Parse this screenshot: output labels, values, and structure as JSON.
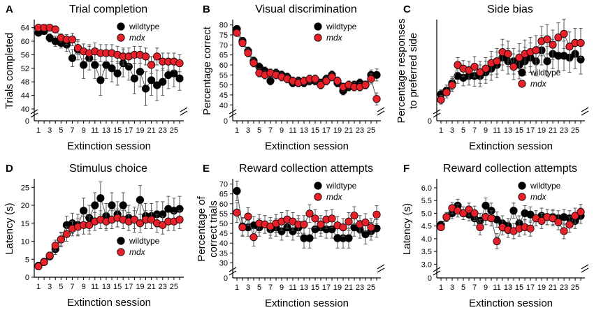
{
  "colors": {
    "wildtype": "#000000",
    "mdx": "#e8202a",
    "error": "#555555"
  },
  "chart_data": [
    {
      "panel": "A",
      "type": "scatter",
      "title": "Trial completion",
      "xlabel": "Extinction session",
      "ylabel": "Trials completed",
      "xlim": [
        0,
        26
      ],
      "xticks": [
        "1",
        "3",
        "5",
        "7",
        "9",
        "11",
        "13",
        "15",
        "17",
        "19",
        "21",
        "23",
        "25"
      ],
      "yticks": [
        40,
        44,
        48,
        52,
        56,
        60,
        64
      ],
      "ylim": [
        40,
        66
      ],
      "ybreak_label": "0",
      "legend": {
        "position": "top-right",
        "entries": [
          "wildtype",
          "mdx"
        ]
      },
      "series": [
        {
          "name": "wildtype",
          "values": [
            62.5,
            63,
            61,
            60,
            59.5,
            59,
            55,
            57.5,
            53,
            55,
            53,
            48.5,
            53,
            52,
            50.5,
            53.5,
            52.5,
            49,
            51,
            46,
            48.5,
            47,
            48,
            50,
            50.5,
            49
          ],
          "errors": [
            0.8,
            0.8,
            1.2,
            1.5,
            1.5,
            2,
            2.5,
            3,
            4,
            3.5,
            4,
            4.5,
            4,
            4,
            3.5,
            4,
            4,
            4.5,
            4.5,
            5,
            4.5,
            4.5,
            4,
            4,
            4,
            3.5
          ]
        },
        {
          "name": "mdx",
          "values": [
            64,
            64,
            64,
            63.5,
            61,
            60.5,
            60.5,
            58,
            57,
            56.5,
            57,
            56.5,
            56.5,
            56.5,
            56,
            55.5,
            55.5,
            56,
            56,
            55.5,
            53,
            55.5,
            54,
            54,
            54,
            53.5
          ],
          "errors": [
            0.6,
            0.6,
            0.8,
            1,
            1.2,
            1.5,
            1.8,
            2,
            2.2,
            2.5,
            2.5,
            2.5,
            2.5,
            2.5,
            2.5,
            2.5,
            2.5,
            2.5,
            2.5,
            2.5,
            2.5,
            2.5,
            2.5,
            2.5,
            2.5,
            2.5
          ]
        }
      ]
    },
    {
      "panel": "B",
      "type": "scatter",
      "title": "Visual discrimination",
      "xlabel": "Extinction session",
      "ylabel": "Percentage correct",
      "xlim": [
        0,
        26
      ],
      "xticks": [
        "1",
        "3",
        "5",
        "7",
        "9",
        "11",
        "13",
        "15",
        "17",
        "19",
        "21",
        "23",
        "25"
      ],
      "yticks": [
        40,
        45,
        50,
        55,
        60,
        65,
        70,
        75,
        80
      ],
      "ylim": [
        38,
        82
      ],
      "ybreak_label": "0",
      "legend": {
        "position": "top-right",
        "entries": [
          "wildtype",
          "mdx"
        ]
      },
      "series": [
        {
          "name": "wildtype",
          "values": [
            78,
            72,
            67,
            62,
            59,
            57,
            52,
            56,
            55,
            54,
            51,
            52,
            51,
            52,
            52,
            51,
            53,
            55,
            51,
            47,
            49,
            50,
            51,
            50,
            55,
            55
          ],
          "errors": [
            1.5,
            1.8,
            2,
            2,
            2,
            2,
            2,
            2,
            2,
            2,
            2,
            2,
            2,
            2,
            2,
            2,
            2,
            2,
            2,
            2,
            2,
            2,
            2,
            2,
            2.5,
            3
          ]
        },
        {
          "name": "mdx",
          "values": [
            76,
            71,
            66,
            61,
            56,
            55,
            56,
            55,
            54,
            53,
            52,
            51,
            52,
            53,
            53,
            50,
            52,
            54,
            52,
            49,
            50,
            49,
            49,
            50,
            53,
            43
          ],
          "errors": [
            1.5,
            1.8,
            2,
            2,
            2,
            2,
            2,
            2,
            2,
            2,
            2,
            2,
            2,
            2,
            2,
            2,
            2,
            2,
            2,
            2,
            2,
            2,
            2,
            2,
            2.5,
            3
          ]
        }
      ]
    },
    {
      "panel": "C",
      "type": "scatter",
      "title": "Side bias",
      "xlabel": "Extinction session",
      "ylabel": "Percentage responses to preferred side",
      "xlim": [
        0,
        26
      ],
      "xticks": [
        "1",
        "3",
        "5",
        "7",
        "9",
        "11",
        "13",
        "15",
        "17",
        "19",
        "21",
        "23",
        "25"
      ],
      "yticks": [],
      "ylim": [
        56,
        80
      ],
      "ybreak_label": "0",
      "legend": {
        "position": "bottom-right",
        "entries": [
          "wildtype",
          "mdx"
        ]
      },
      "series": [
        {
          "name": "wildtype",
          "values": [
            60,
            61,
            63,
            65,
            64.5,
            65,
            65,
            65,
            66,
            67,
            68,
            70,
            69,
            69,
            68,
            69,
            70,
            69,
            72,
            69,
            71,
            70.5,
            70.5,
            70,
            71,
            69.5
          ],
          "errors": [
            1.2,
            1.5,
            1.8,
            2,
            2.2,
            2.5,
            2.8,
            3,
            3,
            3.2,
            3.5,
            3.5,
            3.5,
            3.5,
            3.8,
            3.8,
            4,
            4,
            4,
            4,
            4,
            4,
            4,
            4,
            4,
            4
          ]
        },
        {
          "name": "mdx",
          "values": [
            58.5,
            60.5,
            62.5,
            68,
            67,
            66.5,
            67.5,
            66,
            67,
            68.5,
            69,
            71.5,
            71,
            67.5,
            70,
            71,
            71.5,
            72,
            74.5,
            75,
            73.5,
            75.5,
            76.5,
            73,
            74,
            74
          ],
          "errors": [
            1.2,
            1.5,
            1.8,
            2,
            2.2,
            2.5,
            2.8,
            3,
            3,
            3.2,
            3.5,
            3.5,
            3.5,
            3.5,
            3.8,
            3.8,
            4,
            4,
            4,
            4,
            4,
            4,
            4,
            4,
            4,
            4
          ]
        }
      ]
    },
    {
      "panel": "D",
      "type": "scatter",
      "title": "Stimulus choice",
      "xlabel": "Extinction session",
      "ylabel": "Latency (s)",
      "xlim": [
        0,
        26
      ],
      "xticks": [
        "1",
        "3",
        "5",
        "7",
        "9",
        "11",
        "13",
        "15",
        "17",
        "19",
        "21",
        "23",
        "25"
      ],
      "yticks": [
        0,
        5,
        10,
        15,
        20,
        25
      ],
      "ylim": [
        0,
        27
      ],
      "ybreak_label": "",
      "legend": {
        "position": "bottom-right",
        "entries": [
          "wildtype",
          "mdx"
        ]
      },
      "series": [
        {
          "name": "wildtype",
          "values": [
            3.2,
            4.3,
            5.8,
            7.8,
            10.5,
            14.5,
            15,
            14.5,
            18.5,
            16.5,
            20,
            22,
            17,
            20,
            17.5,
            20,
            16.5,
            16,
            21.5,
            17,
            17,
            17.5,
            17.5,
            19,
            18.5,
            19
          ],
          "errors": [
            0.5,
            0.8,
            1,
            1.5,
            2,
            2.5,
            2.8,
            3,
            3.5,
            3.5,
            3.5,
            4.5,
            3.5,
            3.5,
            3.5,
            3.5,
            3.5,
            3.5,
            4,
            3.5,
            3.5,
            3.5,
            3.5,
            3.5,
            3.5,
            3.5
          ]
        },
        {
          "name": "mdx",
          "values": [
            3,
            4.2,
            6,
            8.8,
            10.5,
            12,
            13.5,
            14,
            14.5,
            14.5,
            15.5,
            16,
            15.5,
            16,
            16.5,
            16,
            15.5,
            16,
            15,
            16,
            16,
            15,
            14.5,
            15.5,
            15.5,
            16
          ],
          "errors": [
            0.5,
            0.8,
            1,
            1.5,
            1.8,
            2,
            2,
            2.2,
            2.5,
            2.5,
            2.5,
            2.5,
            2.5,
            2.5,
            2.5,
            2.5,
            2.5,
            2.5,
            2.5,
            2.5,
            2.5,
            2.5,
            2.5,
            2.5,
            2.5,
            2.5
          ]
        }
      ]
    },
    {
      "panel": "E",
      "type": "scatter",
      "title": "Reward collection attempts",
      "xlabel": "Extinction session",
      "ylabel": "Percentage of correct trials",
      "xlim": [
        0,
        26
      ],
      "xticks": [
        "1",
        "3",
        "5",
        "7",
        "9",
        "11",
        "13",
        "15",
        "17",
        "19",
        "21",
        "23",
        "25"
      ],
      "yticks": [
        30,
        35,
        40,
        45,
        50,
        55,
        60,
        65,
        70
      ],
      "ylim": [
        28,
        72
      ],
      "ybreak_label": "0",
      "legend": {
        "position": "top-right",
        "entries": [
          "wildtype",
          "mdx"
        ]
      },
      "series": [
        {
          "name": "wildtype",
          "values": [
            66.5,
            48.5,
            48,
            49,
            48,
            49.5,
            47,
            48,
            46,
            48,
            46,
            48,
            42.5,
            42.5,
            47,
            48,
            47,
            47,
            42.5,
            42.5,
            42.5,
            48,
            47,
            44.5,
            46,
            47.5
          ],
          "errors": [
            5,
            4.5,
            4.5,
            4.5,
            4.5,
            4.5,
            4.5,
            4.5,
            4.5,
            4.5,
            4.5,
            4.5,
            5,
            5,
            4.5,
            4.5,
            4.5,
            4.5,
            5,
            5,
            5,
            4.5,
            4.5,
            5,
            4.5,
            4.5
          ]
        },
        {
          "name": "mdx",
          "values": [
            55.5,
            48,
            53.5,
            43,
            50,
            49.5,
            48.5,
            50,
            51,
            52,
            51,
            49.5,
            49.5,
            55,
            52.5,
            49.5,
            52,
            52.5,
            49,
            48,
            51,
            54,
            49.5,
            50.5,
            48,
            54.5
          ],
          "errors": [
            5,
            4.5,
            4.5,
            4.5,
            4.5,
            4.5,
            4.5,
            4.5,
            4.5,
            4.5,
            4.5,
            4.5,
            4.5,
            4.5,
            4.5,
            4.5,
            4.5,
            4.5,
            4.5,
            4.5,
            4.5,
            4.5,
            4.5,
            4.5,
            4.5,
            4.5
          ]
        }
      ]
    },
    {
      "panel": "F",
      "type": "scatter",
      "title": "Reward collection attempts",
      "xlabel": "Extinction session",
      "ylabel": "Latency (s)",
      "xlim": [
        0,
        26
      ],
      "xticks": [
        "1",
        "3",
        "5",
        "7",
        "9",
        "11",
        "13",
        "15",
        "17",
        "19",
        "21",
        "23",
        "25"
      ],
      "yticks": [
        3.0,
        3.5,
        4.0,
        4.5,
        5.0,
        5.5,
        6.0
      ],
      "ylim": [
        2.9,
        6.3
      ],
      "ybreak_label": "0",
      "legend": {
        "position": "top-right",
        "entries": [
          "wildtype",
          "mdx"
        ]
      },
      "series": [
        {
          "name": "wildtype",
          "values": [
            4.55,
            4.85,
            5,
            5.3,
            5,
            4.95,
            4.8,
            4.7,
            5.3,
            5.1,
            4.75,
            4.6,
            4.5,
            5.1,
            4.6,
            5,
            4.95,
            4.8,
            4.9,
            4.85,
            4.85,
            4.8,
            4.85,
            4.8,
            4.7,
            4.9
          ],
          "errors": [
            0.12,
            0.18,
            0.22,
            0.25,
            0.25,
            0.25,
            0.28,
            0.3,
            0.3,
            0.3,
            0.3,
            0.3,
            0.3,
            0.3,
            0.3,
            0.3,
            0.3,
            0.3,
            0.3,
            0.3,
            0.3,
            0.3,
            0.3,
            0.3,
            0.3,
            0.3
          ]
        },
        {
          "name": "mdx",
          "values": [
            4.45,
            4.85,
            5.2,
            5.1,
            5,
            5.15,
            5,
            4.45,
            4.85,
            4.8,
            3.9,
            4.45,
            4.35,
            4.3,
            4.4,
            4.45,
            4.4,
            4.8,
            4.7,
            4.85,
            4.8,
            4.65,
            4.3,
            4.55,
            4.9,
            5.05
          ],
          "errors": [
            0.12,
            0.18,
            0.22,
            0.25,
            0.25,
            0.25,
            0.28,
            0.3,
            0.3,
            0.3,
            0.3,
            0.3,
            0.3,
            0.3,
            0.3,
            0.3,
            0.3,
            0.3,
            0.3,
            0.3,
            0.3,
            0.3,
            0.3,
            0.3,
            0.3,
            0.3
          ]
        }
      ]
    }
  ]
}
